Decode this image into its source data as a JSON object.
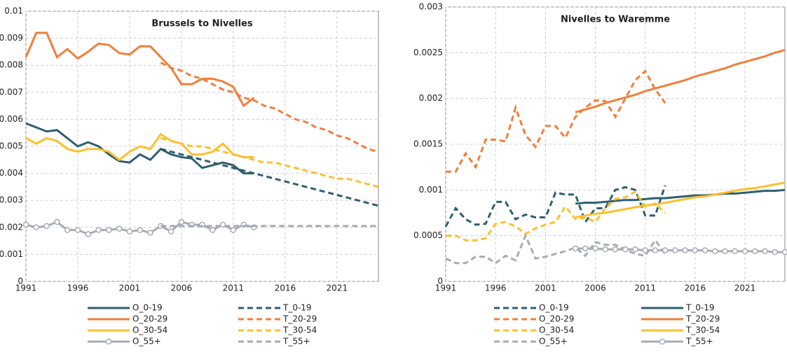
{
  "chart_data": [
    {
      "type": "line",
      "title": "Brussels to Nivelles",
      "x": [
        1991,
        1992,
        1993,
        1994,
        1995,
        1996,
        1997,
        1998,
        1999,
        2000,
        2001,
        2002,
        2003,
        2004,
        2005,
        2006,
        2007,
        2008,
        2009,
        2010,
        2011,
        2012,
        2013,
        2014,
        2015,
        2016,
        2017,
        2018,
        2019,
        2020,
        2021,
        2022,
        2023,
        2024,
        2025
      ],
      "xlim": [
        1991,
        2025
      ],
      "xticks": [
        1991,
        1996,
        2001,
        2006,
        2011,
        2016,
        2021
      ],
      "ylim": [
        0,
        0.01
      ],
      "yticks": [
        0,
        0.001,
        0.002,
        0.003,
        0.004,
        0.005,
        0.006,
        0.007,
        0.008,
        0.009,
        0.01
      ],
      "grid": true,
      "series": [
        {
          "name": "O_0-19",
          "color": "#2e5f6f",
          "dash": false,
          "marker": false,
          "values": [
            0.00585,
            0.0057,
            0.00555,
            0.0056,
            0.0053,
            0.005,
            0.00515,
            0.005,
            0.0047,
            0.00445,
            0.0044,
            0.0047,
            0.0045,
            0.0049,
            0.0047,
            0.0046,
            0.00455,
            0.0042,
            0.0043,
            0.0044,
            0.0043,
            0.004,
            0.004,
            null,
            null,
            null,
            null,
            null,
            null,
            null,
            null,
            null,
            null,
            null,
            null
          ]
        },
        {
          "name": "T_0-19",
          "color": "#2e5f6f",
          "dash": true,
          "marker": false,
          "values": [
            null,
            null,
            null,
            null,
            null,
            null,
            null,
            null,
            null,
            null,
            null,
            null,
            null,
            0.0049,
            0.0048,
            0.0047,
            0.0046,
            0.0045,
            0.0044,
            0.0043,
            0.0042,
            0.0041,
            0.004,
            0.0039,
            0.0038,
            0.0037,
            0.0036,
            0.0035,
            0.0034,
            0.0033,
            0.0032,
            0.0031,
            0.003,
            0.0029,
            0.0028
          ]
        },
        {
          "name": "O_20-29",
          "color": "#f07f3c",
          "dash": false,
          "marker": false,
          "values": [
            0.0083,
            0.0092,
            0.0092,
            0.0083,
            0.0086,
            0.00825,
            0.0085,
            0.0088,
            0.00875,
            0.00845,
            0.0084,
            0.0087,
            0.0087,
            0.0083,
            0.0079,
            0.0073,
            0.0073,
            0.0075,
            0.0075,
            0.0074,
            0.0072,
            0.0065,
            0.0068,
            null,
            null,
            null,
            null,
            null,
            null,
            null,
            null,
            null,
            null,
            null,
            null
          ]
        },
        {
          "name": "T_20-29",
          "color": "#f07f3c",
          "dash": true,
          "marker": false,
          "values": [
            null,
            null,
            null,
            null,
            null,
            null,
            null,
            null,
            null,
            null,
            null,
            null,
            null,
            0.0081,
            0.0079,
            0.0078,
            0.0076,
            0.0075,
            0.0073,
            0.0071,
            0.007,
            0.0068,
            0.0067,
            0.0065,
            0.0064,
            0.0062,
            0.006,
            0.0059,
            0.0057,
            0.0056,
            0.0054,
            0.0053,
            0.0051,
            0.0049,
            0.0048
          ]
        },
        {
          "name": "O_30-54",
          "color": "#fcc02e",
          "dash": false,
          "marker": false,
          "values": [
            0.0053,
            0.0051,
            0.0053,
            0.0052,
            0.0049,
            0.0048,
            0.0049,
            0.0049,
            0.0048,
            0.0045,
            0.0048,
            0.005,
            0.0049,
            0.00545,
            0.0052,
            0.0051,
            0.0047,
            0.0047,
            0.0048,
            0.0051,
            0.0047,
            0.0046,
            0.0046,
            null,
            null,
            null,
            null,
            null,
            null,
            null,
            null,
            null,
            null,
            null,
            null
          ]
        },
        {
          "name": "T_30-54",
          "color": "#fcc02e",
          "dash": true,
          "marker": false,
          "values": [
            null,
            null,
            null,
            null,
            null,
            null,
            null,
            null,
            null,
            null,
            null,
            null,
            null,
            0.0053,
            0.0052,
            0.0051,
            0.005,
            0.005,
            0.0049,
            0.0048,
            0.0047,
            0.0046,
            0.0045,
            0.0044,
            0.0044,
            0.0043,
            0.0042,
            0.0041,
            0.004,
            0.0039,
            0.0038,
            0.0038,
            0.0037,
            0.0036,
            0.0035
          ]
        },
        {
          "name": "O_55+",
          "color": "#a5acb5",
          "dash": false,
          "marker": true,
          "values": [
            0.0021,
            0.002,
            0.00205,
            0.0022,
            0.0019,
            0.0019,
            0.00175,
            0.0019,
            0.0019,
            0.00195,
            0.00185,
            0.0019,
            0.0018,
            0.00205,
            0.00185,
            0.0022,
            0.0021,
            0.0021,
            0.0019,
            0.0021,
            0.0019,
            0.0021,
            0.002,
            null,
            null,
            null,
            null,
            null,
            null,
            null,
            null,
            null,
            null,
            null,
            null
          ]
        },
        {
          "name": "T_55+",
          "color": "#a5acb5",
          "dash": true,
          "marker": false,
          "values": [
            null,
            null,
            null,
            null,
            null,
            null,
            null,
            null,
            null,
            null,
            null,
            null,
            null,
            0.00205,
            0.00205,
            0.00205,
            0.00205,
            0.00205,
            0.00205,
            0.00205,
            0.00205,
            0.00205,
            0.00205,
            0.00205,
            0.00205,
            0.00205,
            0.00205,
            0.00205,
            0.00205,
            0.00205,
            0.00205,
            0.00205,
            0.00205,
            0.00205,
            0.00205
          ]
        }
      ]
    },
    {
      "type": "line",
      "title": "Nivelles to Waremme",
      "x": [
        1991,
        1992,
        1993,
        1994,
        1995,
        1996,
        1997,
        1998,
        1999,
        2000,
        2001,
        2002,
        2003,
        2004,
        2005,
        2006,
        2007,
        2008,
        2009,
        2010,
        2011,
        2012,
        2013,
        2014,
        2015,
        2016,
        2017,
        2018,
        2019,
        2020,
        2021,
        2022,
        2023,
        2024,
        2025
      ],
      "xlim": [
        1991,
        2025
      ],
      "xticks": [
        1991,
        1996,
        2001,
        2006,
        2011,
        2016,
        2021
      ],
      "ylim": [
        0,
        0.003
      ],
      "yticks": [
        0,
        0.0005,
        0.001,
        0.0015,
        0.002,
        0.0025,
        0.003
      ],
      "grid": true,
      "series": [
        {
          "name": "O_0-19",
          "color": "#2e5f6f",
          "dash": true,
          "marker": false,
          "values": [
            0.0006,
            0.0008,
            0.00068,
            0.00062,
            0.00063,
            0.00087,
            0.00087,
            0.00068,
            0.00073,
            0.0007,
            0.0007,
            0.00097,
            0.00095,
            0.00095,
            0.00065,
            0.0008,
            0.0008,
            0.001,
            0.00103,
            0.001,
            0.00072,
            0.00072,
            0.00105,
            null,
            null,
            null,
            null,
            null,
            null,
            null,
            null,
            null,
            null,
            null,
            null
          ]
        },
        {
          "name": "T_0-19",
          "color": "#2e5f6f",
          "dash": false,
          "marker": false,
          "values": [
            null,
            null,
            null,
            null,
            null,
            null,
            null,
            null,
            null,
            null,
            null,
            null,
            null,
            0.00085,
            0.00086,
            0.00086,
            0.00087,
            0.00088,
            0.00089,
            0.00089,
            0.0009,
            0.00091,
            0.00091,
            0.00092,
            0.00093,
            0.00094,
            0.00094,
            0.00095,
            0.00096,
            0.00096,
            0.00097,
            0.00098,
            0.00099,
            0.00099,
            0.001
          ]
        },
        {
          "name": "O_20-29",
          "color": "#f07f3c",
          "dash": true,
          "marker": false,
          "values": [
            0.0012,
            0.0012,
            0.0014,
            0.00125,
            0.00155,
            0.00155,
            0.00153,
            0.0019,
            0.0016,
            0.00147,
            0.0017,
            0.0017,
            0.00157,
            0.0018,
            0.0019,
            0.00198,
            0.00197,
            0.0018,
            0.002,
            0.0022,
            0.0023,
            0.0021,
            0.00195,
            null,
            null,
            null,
            null,
            null,
            null,
            null,
            null,
            null,
            null,
            null,
            null
          ]
        },
        {
          "name": "T_20-29",
          "color": "#f07f3c",
          "dash": false,
          "marker": false,
          "values": [
            null,
            null,
            null,
            null,
            null,
            null,
            null,
            null,
            null,
            null,
            null,
            null,
            null,
            0.00185,
            0.00188,
            0.00191,
            0.00195,
            0.00198,
            0.00201,
            0.00204,
            0.00208,
            0.00211,
            0.00214,
            0.00217,
            0.0022,
            0.00224,
            0.00227,
            0.0023,
            0.00233,
            0.00237,
            0.0024,
            0.00243,
            0.00246,
            0.0025,
            0.00253
          ]
        },
        {
          "name": "O_30-54",
          "color": "#fcc02e",
          "dash": true,
          "marker": false,
          "values": [
            0.0005,
            0.0005,
            0.00045,
            0.00045,
            0.00047,
            0.00063,
            0.00065,
            0.0006,
            0.00052,
            0.00058,
            0.00062,
            0.00065,
            0.00082,
            0.00068,
            0.0007,
            0.00065,
            0.0008,
            0.0009,
            0.00092,
            0.00098,
            0.00082,
            0.00085,
            0.00075,
            null,
            null,
            null,
            null,
            null,
            null,
            null,
            null,
            null,
            null,
            null,
            null
          ]
        },
        {
          "name": "T_30-54",
          "color": "#fcc02e",
          "dash": false,
          "marker": false,
          "values": [
            null,
            null,
            null,
            null,
            null,
            null,
            null,
            null,
            null,
            null,
            null,
            null,
            null,
            0.0007,
            0.00072,
            0.00074,
            0.00075,
            0.00077,
            0.00079,
            0.00081,
            0.00083,
            0.00084,
            0.00086,
            0.00088,
            0.0009,
            0.00092,
            0.00093,
            0.00095,
            0.00097,
            0.00099,
            0.00101,
            0.00102,
            0.00104,
            0.00106,
            0.00108
          ]
        },
        {
          "name": "O_55+",
          "color": "#a5acb5",
          "dash": true,
          "marker": false,
          "values": [
            0.00025,
            0.0002,
            0.0002,
            0.00027,
            0.00027,
            0.0002,
            0.00028,
            0.00023,
            0.0005,
            0.00025,
            0.00027,
            0.0003,
            0.00033,
            0.00037,
            0.00028,
            0.00043,
            0.0004,
            0.0004,
            0.00035,
            0.0003,
            0.00028,
            0.00045,
            0.0003,
            null,
            null,
            null,
            null,
            null,
            null,
            null,
            null,
            null,
            null,
            null,
            null
          ]
        },
        {
          "name": "T_55+",
          "color": "#a5acb5",
          "dash": false,
          "marker": true,
          "values": [
            null,
            null,
            null,
            null,
            null,
            null,
            null,
            null,
            null,
            null,
            null,
            null,
            null,
            0.00036,
            0.00036,
            0.00036,
            0.00035,
            0.00035,
            0.00035,
            0.00035,
            0.00034,
            0.00034,
            0.00034,
            0.00034,
            0.00034,
            0.00034,
            0.00034,
            0.00033,
            0.00033,
            0.00033,
            0.00033,
            0.00033,
            0.00033,
            0.00032,
            0.00032
          ]
        }
      ]
    }
  ]
}
